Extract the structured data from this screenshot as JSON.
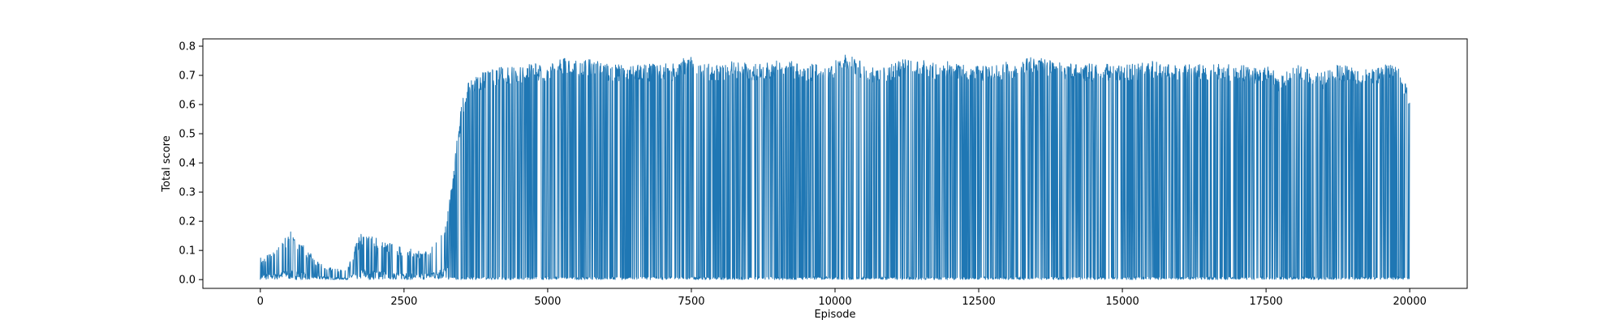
{
  "chart_data": {
    "type": "line",
    "title": "",
    "xlabel": "Episode",
    "ylabel": "Total score",
    "xlim": [
      -1000,
      21000
    ],
    "ylim": [
      -0.03,
      0.825
    ],
    "xticks": [
      0,
      2500,
      5000,
      7500,
      10000,
      12500,
      15000,
      17500,
      20000
    ],
    "xtick_labels": [
      "0",
      "2500",
      "5000",
      "7500",
      "10000",
      "12500",
      "15000",
      "17500",
      "20000"
    ],
    "yticks": [
      0.0,
      0.1,
      0.2,
      0.3,
      0.4,
      0.5,
      0.6,
      0.7,
      0.8
    ],
    "ytick_labels": [
      "0.0",
      "0.1",
      "0.2",
      "0.3",
      "0.4",
      "0.5",
      "0.6",
      "0.7",
      "0.8"
    ],
    "grid": false,
    "line_color": "#1f77b4",
    "series": [
      {
        "name": "",
        "x": [
          0,
          250,
          500,
          750,
          1000,
          1250,
          1500,
          1750,
          2000,
          2250,
          2500,
          2750,
          3000,
          3250,
          3400,
          3500,
          3600,
          3750,
          4000,
          4250,
          4500,
          4750,
          5000,
          5250,
          5500,
          5750,
          6000,
          6250,
          6500,
          6750,
          7000,
          7250,
          7500,
          7750,
          8000,
          8250,
          8500,
          8750,
          9000,
          9250,
          9500,
          9750,
          10000,
          10250,
          10500,
          10750,
          11000,
          11250,
          11500,
          11750,
          12000,
          12250,
          12500,
          12750,
          13000,
          13250,
          13500,
          13750,
          14000,
          14250,
          14500,
          14750,
          15000,
          15250,
          15500,
          15750,
          16000,
          16250,
          16500,
          16750,
          17000,
          17250,
          17500,
          17750,
          18000,
          18250,
          18500,
          18750,
          19000,
          19250,
          19500,
          19750,
          20000
        ],
        "y_high": [
          0.08,
          0.1,
          0.17,
          0.12,
          0.06,
          0.04,
          0.03,
          0.17,
          0.15,
          0.13,
          0.11,
          0.1,
          0.12,
          0.22,
          0.45,
          0.6,
          0.68,
          0.7,
          0.72,
          0.73,
          0.73,
          0.74,
          0.74,
          0.76,
          0.75,
          0.76,
          0.74,
          0.74,
          0.74,
          0.74,
          0.74,
          0.74,
          0.78,
          0.74,
          0.74,
          0.75,
          0.74,
          0.74,
          0.75,
          0.75,
          0.74,
          0.74,
          0.75,
          0.78,
          0.74,
          0.73,
          0.74,
          0.76,
          0.76,
          0.74,
          0.75,
          0.74,
          0.74,
          0.73,
          0.75,
          0.75,
          0.77,
          0.75,
          0.74,
          0.74,
          0.74,
          0.74,
          0.74,
          0.74,
          0.75,
          0.74,
          0.74,
          0.74,
          0.74,
          0.74,
          0.74,
          0.73,
          0.74,
          0.7,
          0.74,
          0.73,
          0.71,
          0.74,
          0.73,
          0.72,
          0.73,
          0.75,
          0.64
        ],
        "y_low": [
          0.0,
          0.0,
          0.0,
          0.0,
          0.0,
          0.0,
          0.0,
          0.0,
          0.0,
          0.0,
          0.0,
          0.0,
          0.0,
          0.0,
          0.0,
          0.0,
          0.0,
          0.0,
          0.0,
          0.0,
          0.0,
          0.0,
          0.0,
          0.0,
          0.0,
          0.0,
          0.0,
          0.0,
          0.0,
          0.0,
          0.0,
          0.0,
          0.0,
          0.0,
          0.0,
          0.0,
          0.0,
          0.0,
          0.0,
          0.0,
          0.0,
          0.0,
          0.0,
          0.0,
          0.0,
          0.0,
          0.0,
          0.0,
          0.0,
          0.0,
          0.0,
          0.0,
          0.0,
          0.0,
          0.0,
          0.0,
          0.0,
          0.0,
          0.0,
          0.0,
          0.0,
          0.0,
          0.0,
          0.0,
          0.0,
          0.0,
          0.0,
          0.0,
          0.0,
          0.0,
          0.0,
          0.0,
          0.0,
          0.0,
          0.0,
          0.0,
          0.0,
          0.0,
          0.0,
          0.0,
          0.0,
          0.0,
          0.0
        ]
      }
    ]
  }
}
